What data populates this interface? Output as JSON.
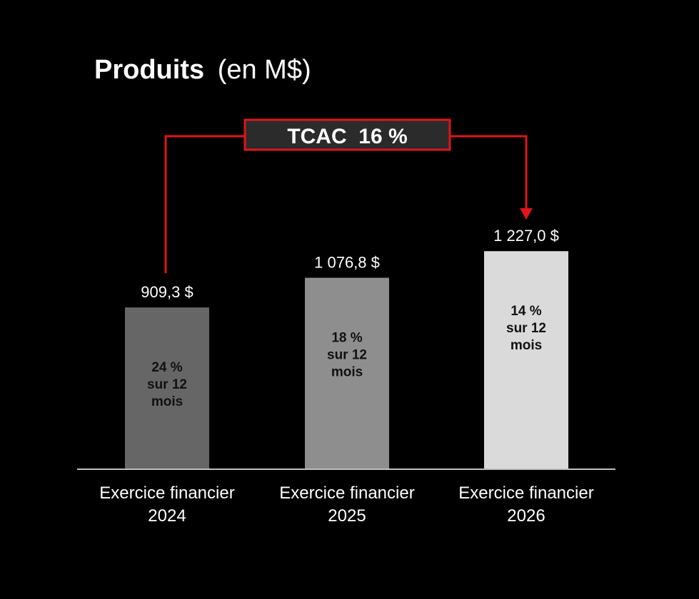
{
  "chart_data": {
    "type": "bar",
    "title": "Produits",
    "subtitle": "(en M$)",
    "categories": [
      [
        "Exercice financier",
        "2024"
      ],
      [
        "Exercice financier",
        "2025"
      ],
      [
        "Exercice financier",
        "2026"
      ]
    ],
    "values": [
      909.3,
      1076.8,
      1227.0
    ],
    "value_labels": [
      "909,3 $",
      "1 076,8 $",
      "1 227,0 $"
    ],
    "inner_labels": [
      [
        "24 %",
        "sur 12",
        "mois"
      ],
      [
        "18 %",
        "sur 12",
        "mois"
      ],
      [
        "14 %",
        "sur 12",
        "mois"
      ]
    ],
    "bar_colors": [
      "#666666",
      "#8e8e8e",
      "#dadada"
    ],
    "cagr_label": "TCAC  16 %",
    "accent_color": "#e0141b",
    "grid": false,
    "legend": "none"
  }
}
